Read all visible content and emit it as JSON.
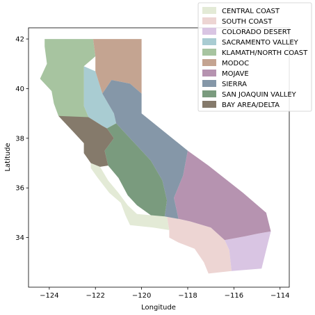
{
  "chart_data": {
    "type": "map",
    "xlabel": "Longitude",
    "ylabel": "Latitude",
    "xlim": [
      -124.9,
      -113.6
    ],
    "ylim": [
      32.0,
      42.45
    ],
    "x_ticks": [
      -124,
      -122,
      -120,
      -118,
      -116,
      -114
    ],
    "x_tick_labels": [
      "−124",
      "−122",
      "−120",
      "−118",
      "−116",
      "−114"
    ],
    "y_ticks": [
      34,
      36,
      38,
      40,
      42
    ],
    "y_tick_labels": [
      "34",
      "36",
      "38",
      "40",
      "42"
    ],
    "legend_position": "top-right",
    "regions": [
      {
        "name": "CENTRAL COAST",
        "color": "#e3ead6",
        "polygon": [
          [
            -122.2,
            37.0
          ],
          [
            -121.8,
            36.85
          ],
          [
            -121.45,
            36.3
          ],
          [
            -121.0,
            35.8
          ],
          [
            -120.6,
            35.3
          ],
          [
            -120.2,
            34.95
          ],
          [
            -119.6,
            34.9
          ],
          [
            -118.9,
            34.85
          ],
          [
            -118.8,
            34.3
          ],
          [
            -119.5,
            34.4
          ],
          [
            -120.5,
            34.5
          ],
          [
            -120.7,
            34.9
          ],
          [
            -120.9,
            35.4
          ],
          [
            -121.4,
            35.8
          ],
          [
            -121.9,
            36.4
          ],
          [
            -122.2,
            36.8
          ]
        ]
      },
      {
        "name": "SOUTH COAST",
        "color": "#edd5d3",
        "polygon": [
          [
            -118.9,
            34.85
          ],
          [
            -117.9,
            34.65
          ],
          [
            -117.0,
            34.4
          ],
          [
            -116.4,
            33.9
          ],
          [
            -116.2,
            33.5
          ],
          [
            -116.1,
            32.65
          ],
          [
            -117.1,
            32.55
          ],
          [
            -117.3,
            33.0
          ],
          [
            -117.7,
            33.55
          ],
          [
            -118.4,
            33.8
          ],
          [
            -118.8,
            34.0
          ],
          [
            -118.8,
            34.3
          ]
        ]
      },
      {
        "name": "COLORADO DESERT",
        "color": "#d9c5e3",
        "polygon": [
          [
            -116.4,
            33.9
          ],
          [
            -115.5,
            34.05
          ],
          [
            -115.0,
            34.15
          ],
          [
            -114.4,
            34.25
          ],
          [
            -114.6,
            33.5
          ],
          [
            -114.8,
            32.75
          ],
          [
            -116.1,
            32.65
          ],
          [
            -116.2,
            33.5
          ]
        ]
      },
      {
        "name": "SACRAMENTO VALLEY",
        "color": "#a9ccd2",
        "polygon": [
          [
            -122.5,
            40.9
          ],
          [
            -122.0,
            40.7
          ],
          [
            -121.7,
            39.8
          ],
          [
            -121.2,
            39.0
          ],
          [
            -121.1,
            38.6
          ],
          [
            -121.5,
            38.4
          ],
          [
            -121.7,
            38.5
          ],
          [
            -122.3,
            38.85
          ],
          [
            -122.5,
            39.3
          ],
          [
            -122.5,
            40.0
          ]
        ]
      },
      {
        "name": "KLAMATH/NORTH COAST",
        "color": "#a7c4a0",
        "polygon": [
          [
            -124.2,
            42.0
          ],
          [
            -122.1,
            42.0
          ],
          [
            -122.0,
            41.3
          ],
          [
            -122.5,
            40.9
          ],
          [
            -122.5,
            40.0
          ],
          [
            -122.5,
            39.3
          ],
          [
            -122.3,
            38.85
          ],
          [
            -123.0,
            38.3
          ],
          [
            -123.6,
            38.9
          ],
          [
            -123.8,
            39.4
          ],
          [
            -123.9,
            39.9
          ],
          [
            -124.4,
            40.4
          ],
          [
            -124.1,
            41.0
          ],
          [
            -124.2,
            41.7
          ]
        ]
      },
      {
        "name": "MODOC",
        "color": "#c4a491",
        "polygon": [
          [
            -122.1,
            42.0
          ],
          [
            -120.0,
            42.0
          ],
          [
            -120.0,
            39.8
          ],
          [
            -120.5,
            40.2
          ],
          [
            -121.3,
            40.35
          ],
          [
            -121.7,
            39.8
          ],
          [
            -122.0,
            40.7
          ],
          [
            -122.0,
            41.3
          ]
        ]
      },
      {
        "name": "MOJAVE",
        "color": "#b693b0",
        "polygon": [
          [
            -118.0,
            37.5
          ],
          [
            -117.1,
            36.9
          ],
          [
            -115.6,
            35.8
          ],
          [
            -114.6,
            35.0
          ],
          [
            -114.4,
            34.25
          ],
          [
            -115.0,
            34.15
          ],
          [
            -115.5,
            34.05
          ],
          [
            -116.4,
            33.9
          ],
          [
            -117.0,
            34.4
          ],
          [
            -117.9,
            34.65
          ],
          [
            -118.4,
            34.75
          ],
          [
            -118.6,
            35.6
          ],
          [
            -118.2,
            36.5
          ]
        ]
      },
      {
        "name": "SIERRA",
        "color": "#8597a8",
        "polygon": [
          [
            -120.0,
            39.8
          ],
          [
            -120.0,
            39.0
          ],
          [
            -118.0,
            37.5
          ],
          [
            -118.2,
            36.5
          ],
          [
            -118.6,
            35.6
          ],
          [
            -118.4,
            34.75
          ],
          [
            -119.0,
            34.85
          ],
          [
            -118.9,
            35.5
          ],
          [
            -119.1,
            36.3
          ],
          [
            -119.6,
            37.1
          ],
          [
            -120.2,
            37.7
          ],
          [
            -120.7,
            38.2
          ],
          [
            -121.1,
            38.6
          ],
          [
            -121.2,
            39.0
          ],
          [
            -121.7,
            39.8
          ],
          [
            -121.3,
            40.35
          ],
          [
            -120.5,
            40.2
          ]
        ]
      },
      {
        "name": "SAN JOAQUIN VALLEY",
        "color": "#7a9b7e",
        "polygon": [
          [
            -121.1,
            38.6
          ],
          [
            -120.7,
            38.2
          ],
          [
            -120.2,
            37.7
          ],
          [
            -119.6,
            37.1
          ],
          [
            -119.1,
            36.3
          ],
          [
            -118.9,
            35.5
          ],
          [
            -119.0,
            34.85
          ],
          [
            -119.6,
            34.9
          ],
          [
            -120.2,
            35.3
          ],
          [
            -120.6,
            35.7
          ],
          [
            -121.0,
            36.4
          ],
          [
            -121.45,
            36.9
          ],
          [
            -121.6,
            37.5
          ],
          [
            -121.2,
            38.0
          ],
          [
            -121.5,
            38.4
          ]
        ]
      },
      {
        "name": "BAY AREA/DELTA",
        "color": "#857a6b",
        "polygon": [
          [
            -123.6,
            38.9
          ],
          [
            -123.0,
            38.3
          ],
          [
            -122.5,
            37.8
          ],
          [
            -122.5,
            37.4
          ],
          [
            -122.2,
            37.0
          ],
          [
            -121.8,
            36.85
          ],
          [
            -121.45,
            36.9
          ],
          [
            -121.6,
            37.5
          ],
          [
            -121.2,
            38.0
          ],
          [
            -121.5,
            38.4
          ],
          [
            -121.7,
            38.5
          ],
          [
            -122.3,
            38.85
          ]
        ]
      }
    ]
  }
}
